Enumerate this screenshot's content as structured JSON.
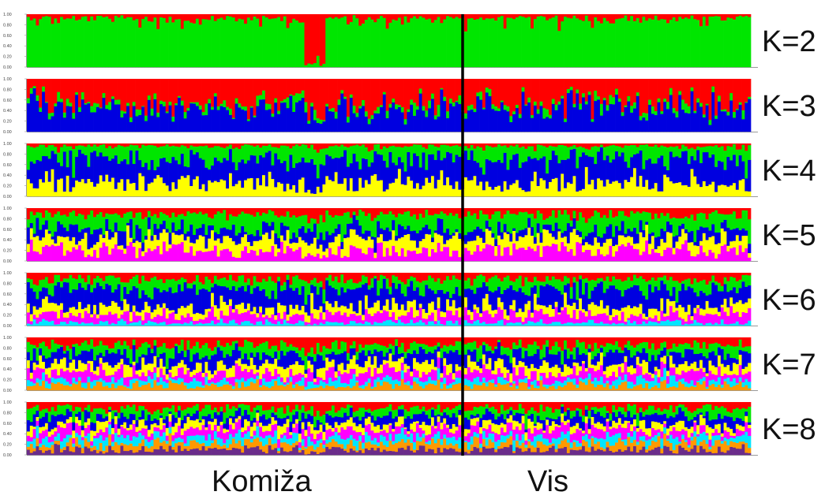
{
  "chart_data": {
    "type": "stacked-bar",
    "y_ticks": [
      "0.00",
      "0.20",
      "0.40",
      "0.60",
      "0.80",
      "1.00"
    ],
    "ylim": [
      0,
      1
    ],
    "populations": [
      "Komiža",
      "Vis"
    ],
    "colors": {
      "red": "#ff0000",
      "green": "#00e600",
      "blue": "#0000e0",
      "yellow": "#ffff00",
      "magenta": "#ff00ff",
      "cyan": "#00e5ff",
      "orange": "#ff9900",
      "purple": "#6a2c8a"
    },
    "panels": [
      {
        "label": "K=2",
        "k": 2,
        "cluster_colors": [
          "green",
          "red"
        ],
        "mean_proportions": [
          0.92,
          0.08
        ]
      },
      {
        "label": "K=3",
        "k": 3,
        "cluster_colors": [
          "blue",
          "green",
          "red"
        ],
        "mean_proportions": [
          0.45,
          0.08,
          0.47
        ]
      },
      {
        "label": "K=4",
        "k": 4,
        "cluster_colors": [
          "yellow",
          "blue",
          "green",
          "red"
        ],
        "mean_proportions": [
          0.25,
          0.45,
          0.25,
          0.05
        ]
      },
      {
        "label": "K=5",
        "k": 5,
        "cluster_colors": [
          "magenta",
          "yellow",
          "blue",
          "green",
          "red"
        ],
        "mean_proportions": [
          0.2,
          0.22,
          0.18,
          0.28,
          0.12
        ]
      },
      {
        "label": "K=6",
        "k": 6,
        "cluster_colors": [
          "cyan",
          "magenta",
          "yellow",
          "blue",
          "green",
          "red"
        ],
        "mean_proportions": [
          0.06,
          0.15,
          0.15,
          0.32,
          0.2,
          0.12
        ]
      },
      {
        "label": "K=7",
        "k": 7,
        "cluster_colors": [
          "orange",
          "cyan",
          "magenta",
          "yellow",
          "blue",
          "green",
          "red"
        ],
        "mean_proportions": [
          0.1,
          0.1,
          0.15,
          0.15,
          0.2,
          0.16,
          0.14
        ]
      },
      {
        "label": "K=8",
        "k": 8,
        "cluster_colors": [
          "purple",
          "orange",
          "cyan",
          "magenta",
          "yellow",
          "blue",
          "green",
          "red"
        ],
        "mean_proportions": [
          0.1,
          0.12,
          0.12,
          0.14,
          0.12,
          0.14,
          0.14,
          0.12
        ]
      }
    ]
  }
}
